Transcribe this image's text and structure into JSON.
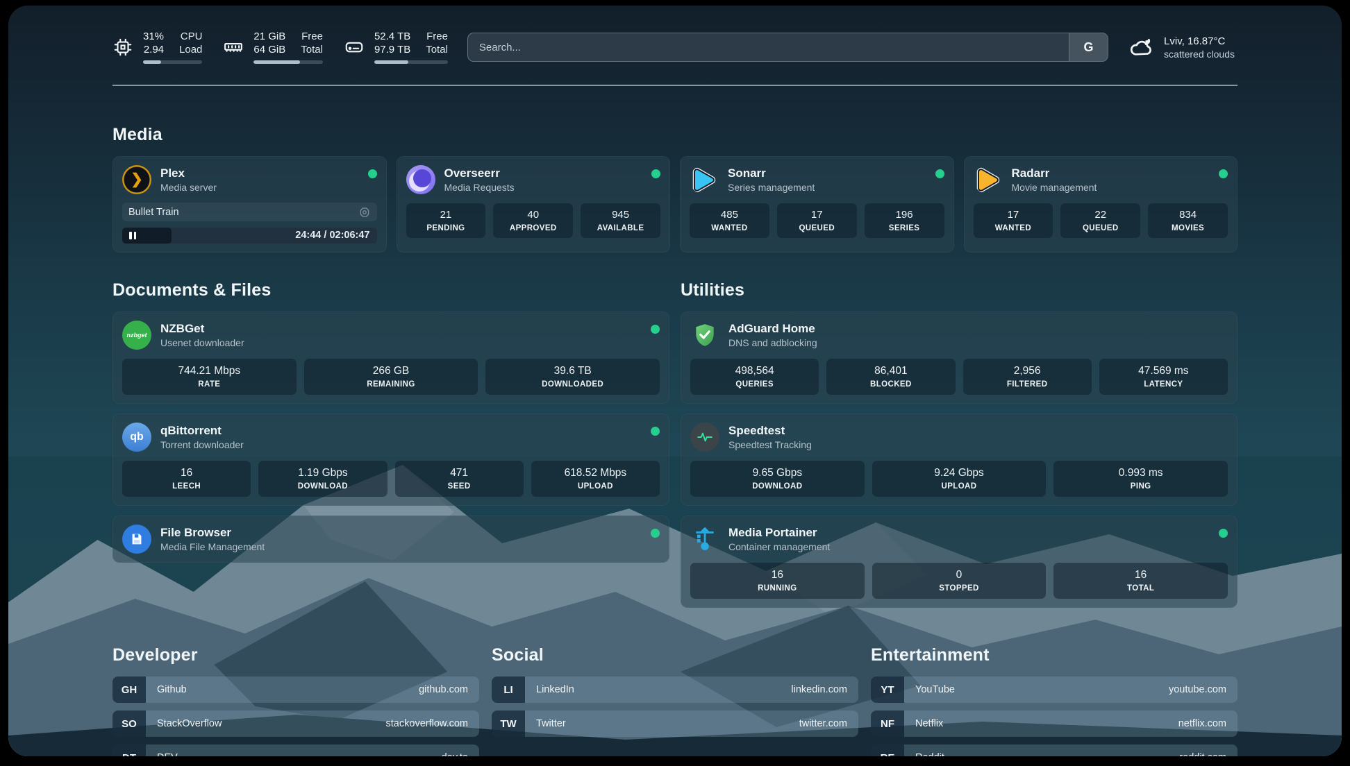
{
  "colors": {
    "accent_green": "#25cf8d",
    "plex_amber": "#e5a00d",
    "sonarr_blue": "#39c5f3",
    "radarr_yellow": "#f7b42c"
  },
  "topbar": {
    "cpu": {
      "value_top": "31%",
      "value_bottom": "2.94",
      "label_top": "CPU",
      "label_bottom": "Load",
      "progress_percent": 31
    },
    "ram": {
      "value_top": "21 GiB",
      "value_bottom": "64 GiB",
      "label_top": "Free",
      "label_bottom": "Total",
      "progress_percent": 67
    },
    "disk": {
      "value_top": "52.4 TB",
      "value_bottom": "97.9 TB",
      "label_top": "Free",
      "label_bottom": "Total",
      "progress_percent": 46
    },
    "search": {
      "placeholder": "Search...",
      "button_label": "G"
    },
    "weather": {
      "location_temp": "Lviv, 16.87°C",
      "condition": "scattered clouds"
    }
  },
  "sections": {
    "media": {
      "title": "Media",
      "plex": {
        "name": "Plex",
        "desc": "Media server",
        "now_playing": "Bullet Train",
        "time": "24:44 / 02:06:47",
        "progress_percent": 19.5
      },
      "overseerr": {
        "name": "Overseerr",
        "desc": "Media Requests",
        "stats": [
          {
            "value": "21",
            "label": "PENDING"
          },
          {
            "value": "40",
            "label": "APPROVED"
          },
          {
            "value": "945",
            "label": "AVAILABLE"
          }
        ]
      },
      "sonarr": {
        "name": "Sonarr",
        "desc": "Series management",
        "stats": [
          {
            "value": "485",
            "label": "WANTED"
          },
          {
            "value": "17",
            "label": "QUEUED"
          },
          {
            "value": "196",
            "label": "SERIES"
          }
        ]
      },
      "radarr": {
        "name": "Radarr",
        "desc": "Movie management",
        "stats": [
          {
            "value": "17",
            "label": "WANTED"
          },
          {
            "value": "22",
            "label": "QUEUED"
          },
          {
            "value": "834",
            "label": "MOVIES"
          }
        ]
      }
    },
    "documents": {
      "title": "Documents & Files",
      "nzbget": {
        "name": "NZBGet",
        "desc": "Usenet downloader",
        "icon_text": "nzbget",
        "stats": [
          {
            "value": "744.21 Mbps",
            "label": "RATE"
          },
          {
            "value": "266 GB",
            "label": "REMAINING"
          },
          {
            "value": "39.6 TB",
            "label": "DOWNLOADED"
          }
        ]
      },
      "qbittorrent": {
        "name": "qBittorrent",
        "desc": "Torrent downloader",
        "icon_text": "qb",
        "stats": [
          {
            "value": "16",
            "label": "LEECH"
          },
          {
            "value": "1.19 Gbps",
            "label": "DOWNLOAD"
          },
          {
            "value": "471",
            "label": "SEED"
          },
          {
            "value": "618.52 Mbps",
            "label": "UPLOAD"
          }
        ]
      },
      "filebrowser": {
        "name": "File Browser",
        "desc": "Media File Management"
      }
    },
    "utilities": {
      "title": "Utilities",
      "adguard": {
        "name": "AdGuard Home",
        "desc": "DNS and adblocking",
        "stats": [
          {
            "value": "498,564",
            "label": "QUERIES"
          },
          {
            "value": "86,401",
            "label": "BLOCKED"
          },
          {
            "value": "2,956",
            "label": "FILTERED"
          },
          {
            "value": "47.569 ms",
            "label": "LATENCY"
          }
        ]
      },
      "speedtest": {
        "name": "Speedtest",
        "desc": "Speedtest Tracking",
        "stats": [
          {
            "value": "9.65 Gbps",
            "label": "DOWNLOAD"
          },
          {
            "value": "9.24 Gbps",
            "label": "UPLOAD"
          },
          {
            "value": "0.993 ms",
            "label": "PING"
          }
        ]
      },
      "portainer": {
        "name": "Media Portainer",
        "desc": "Container management",
        "stats": [
          {
            "value": "16",
            "label": "RUNNING"
          },
          {
            "value": "0",
            "label": "STOPPED"
          },
          {
            "value": "16",
            "label": "TOTAL"
          }
        ]
      }
    },
    "developer": {
      "title": "Developer",
      "links": [
        {
          "abbr": "GH",
          "name": "Github",
          "url": "github.com"
        },
        {
          "abbr": "SO",
          "name": "StackOverflow",
          "url": "stackoverflow.com"
        },
        {
          "abbr": "DT",
          "name": "DEV",
          "url": "dev.to"
        }
      ]
    },
    "social": {
      "title": "Social",
      "links": [
        {
          "abbr": "LI",
          "name": "LinkedIn",
          "url": "linkedin.com"
        },
        {
          "abbr": "TW",
          "name": "Twitter",
          "url": "twitter.com"
        }
      ]
    },
    "entertainment": {
      "title": "Entertainment",
      "links": [
        {
          "abbr": "YT",
          "name": "YouTube",
          "url": "youtube.com"
        },
        {
          "abbr": "NF",
          "name": "Netflix",
          "url": "netflix.com"
        },
        {
          "abbr": "RE",
          "name": "Reddit",
          "url": "reddit.com"
        }
      ]
    }
  }
}
